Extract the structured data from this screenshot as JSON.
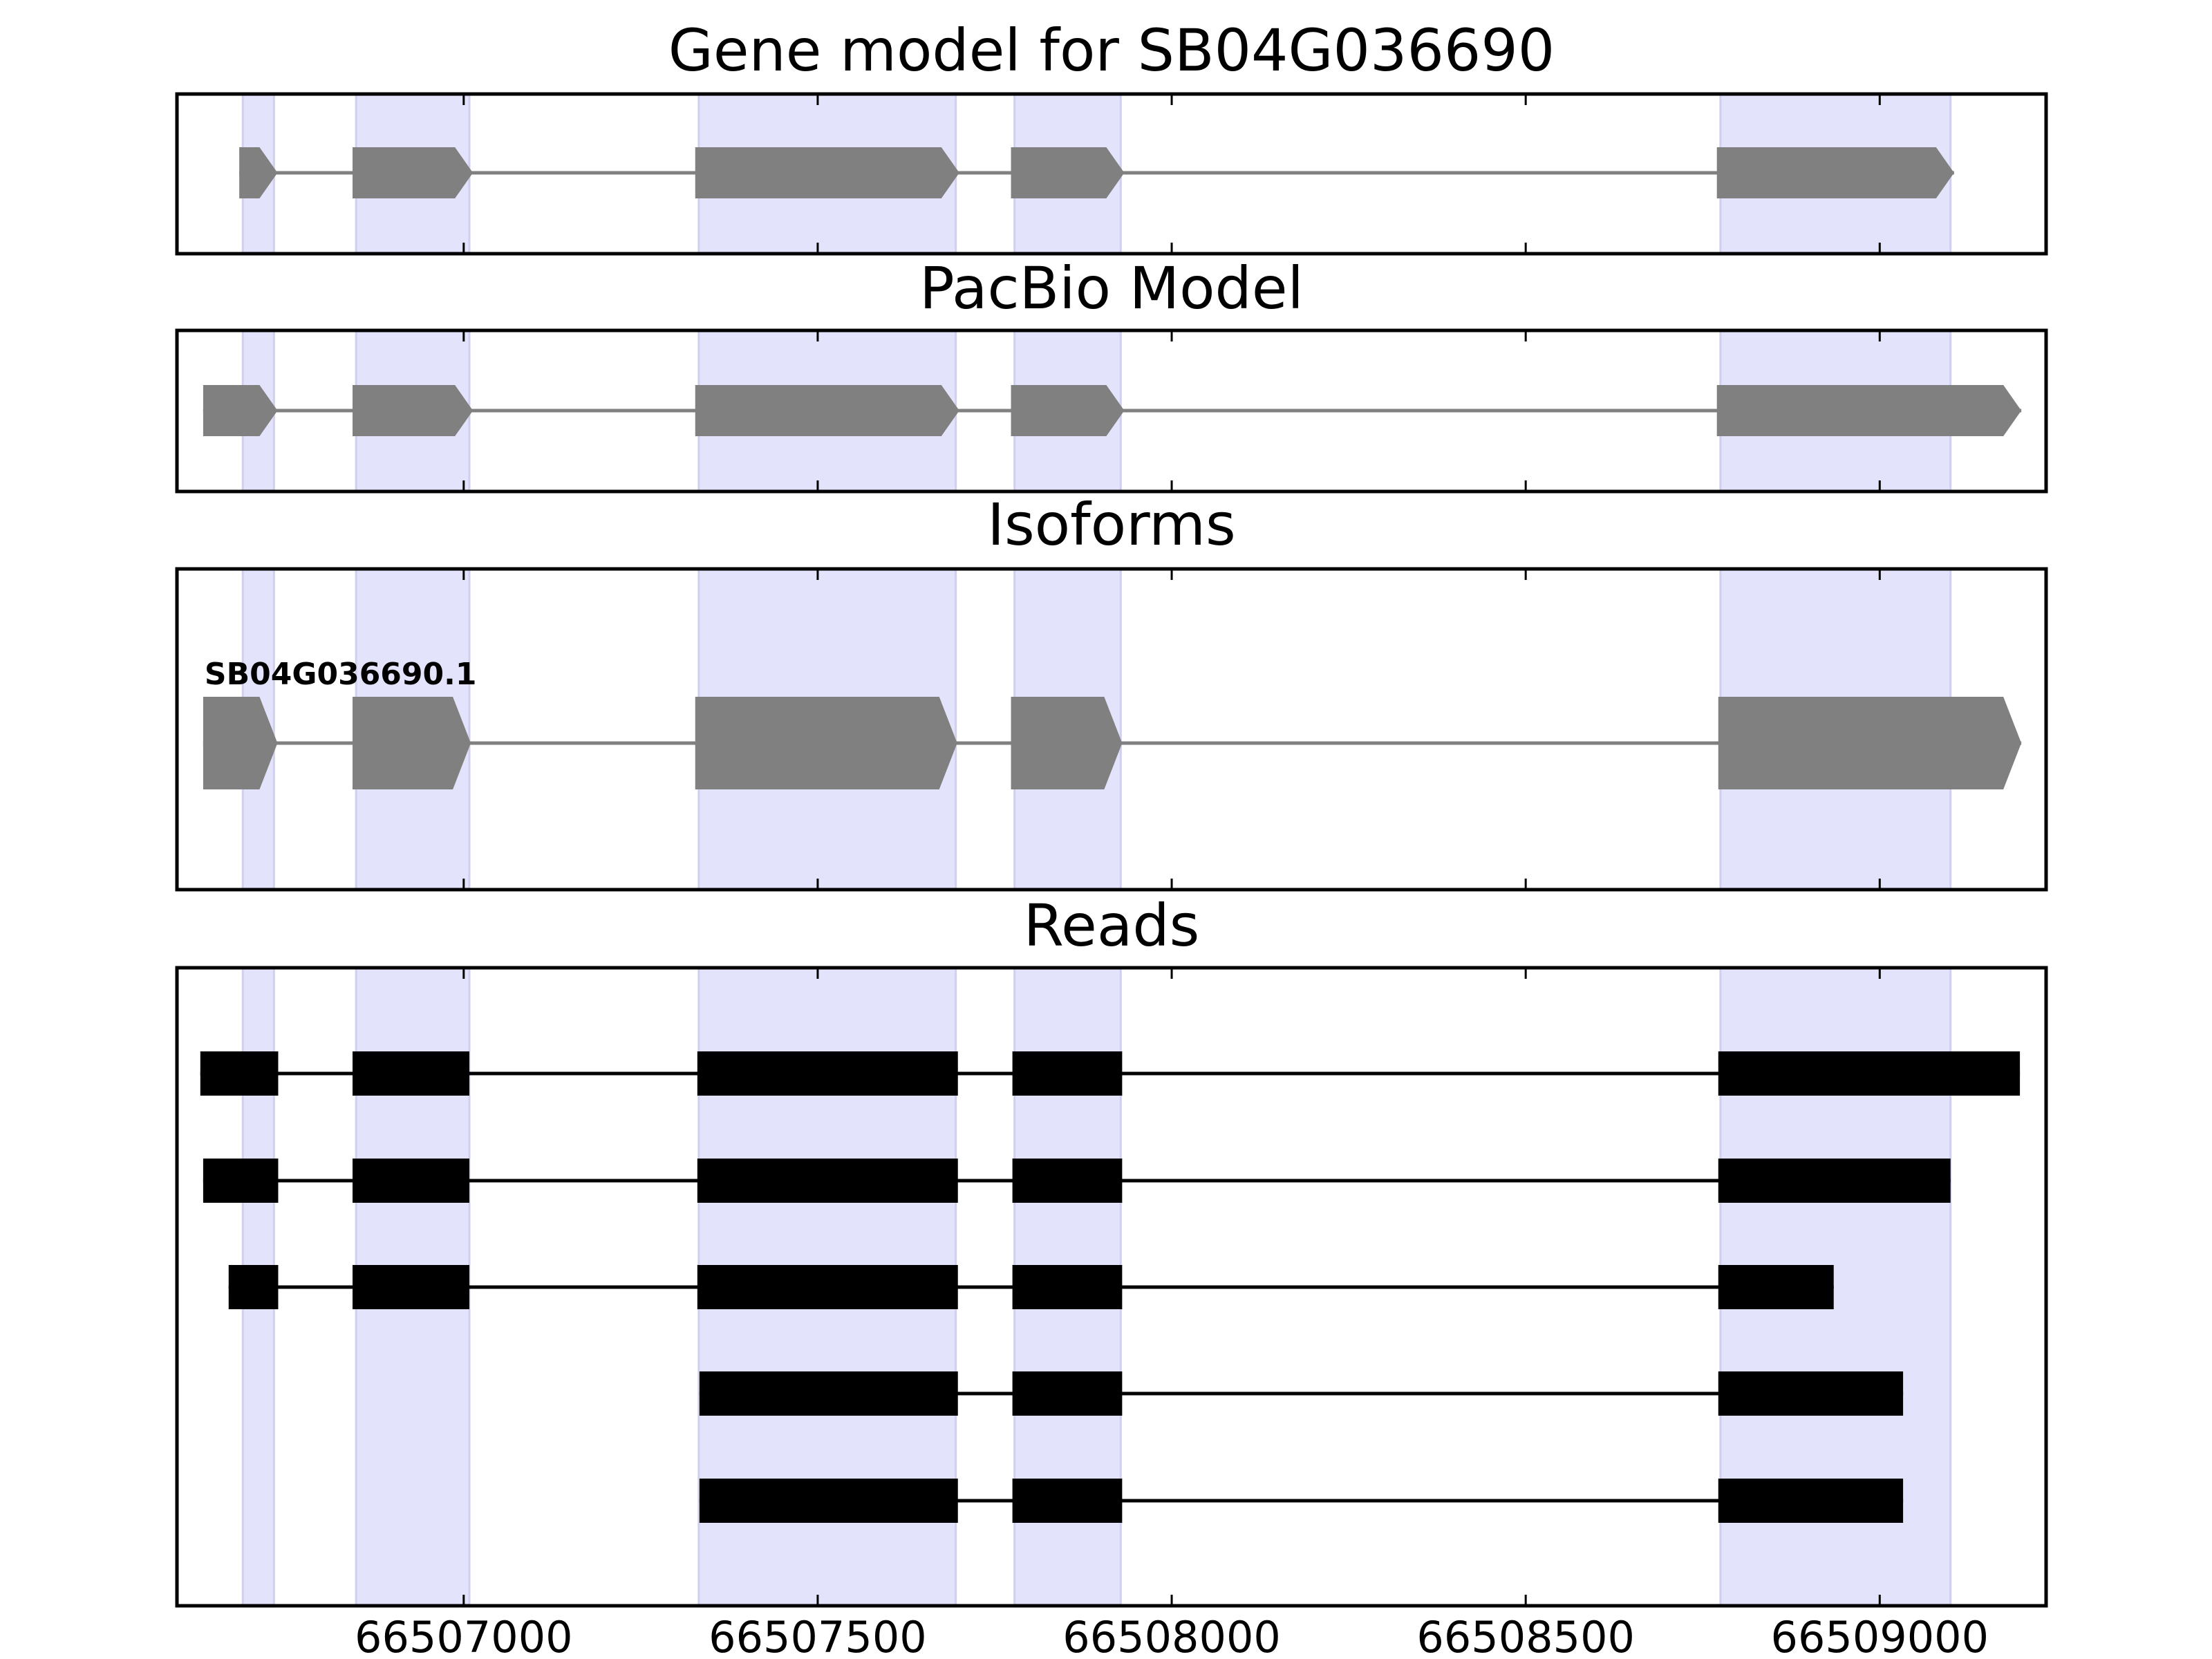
{
  "chart_data": {
    "type": "gene-structure",
    "x_axis": {
      "range": [
        66506595,
        66509235
      ],
      "ticks": [
        66506500,
        66507000,
        66507500,
        66508000,
        66508500,
        66509000,
        66509500
      ],
      "tick_labels": [
        "66507000",
        "66507500",
        "66508000",
        "66508500",
        "66509000"
      ]
    },
    "colors": {
      "highlight": "#e3e3fc",
      "highlight_edge": "#cfcff0",
      "model_fill": "#808080",
      "model_line": "#808080",
      "read_fill": "#000000"
    },
    "highlight_exons": [
      [
        66506688,
        66506732
      ],
      [
        66506848,
        66507008
      ],
      [
        66507332,
        66507695
      ],
      [
        66507778,
        66507928
      ],
      [
        66508775,
        66509100
      ]
    ],
    "panels": [
      {
        "title": "Gene model for SB04G036690",
        "kind": "model",
        "transcripts": [
          {
            "label": "",
            "exons": [
              [
                66506683,
                66506737
              ],
              [
                66506843,
                66507013
              ],
              [
                66507327,
                66507700
              ],
              [
                66507773,
                66507933
              ],
              [
                66508770,
                66509105
              ]
            ]
          }
        ]
      },
      {
        "title": "PacBio Model",
        "kind": "model",
        "transcripts": [
          {
            "label": "",
            "exons": [
              [
                66506632,
                66506737
              ],
              [
                66506843,
                66507013
              ],
              [
                66507327,
                66507700
              ],
              [
                66507773,
                66507933
              ],
              [
                66508770,
                66509200
              ]
            ]
          }
        ]
      },
      {
        "title": "Isoforms",
        "kind": "isoform",
        "transcripts": [
          {
            "label": "SB04G036690.1",
            "exons": [
              [
                66506632,
                66506737
              ],
              [
                66506843,
                66507010
              ],
              [
                66507327,
                66507697
              ],
              [
                66507773,
                66507930
              ],
              [
                66508772,
                66509200
              ]
            ]
          }
        ]
      },
      {
        "title": "Reads",
        "kind": "reads",
        "transcripts": [
          {
            "label": "",
            "exons": [
              [
                66506628,
                66506738
              ],
              [
                66506843,
                66507008
              ],
              [
                66507330,
                66507698
              ],
              [
                66507775,
                66507930
              ],
              [
                66508772,
                66509198
              ]
            ]
          },
          {
            "label": "",
            "exons": [
              [
                66506632,
                66506738
              ],
              [
                66506843,
                66507008
              ],
              [
                66507330,
                66507698
              ],
              [
                66507775,
                66507930
              ],
              [
                66508772,
                66509100
              ]
            ]
          },
          {
            "label": "",
            "exons": [
              [
                66506668,
                66506738
              ],
              [
                66506843,
                66507008
              ],
              [
                66507330,
                66507698
              ],
              [
                66507775,
                66507930
              ],
              [
                66508772,
                66508935
              ]
            ]
          },
          {
            "label": "",
            "exons": [
              [
                66507333,
                66507698
              ],
              [
                66507775,
                66507930
              ],
              [
                66508772,
                66509033
              ]
            ]
          },
          {
            "label": "",
            "exons": [
              [
                66507333,
                66507698
              ],
              [
                66507775,
                66507930
              ],
              [
                66508772,
                66509033
              ]
            ]
          }
        ]
      }
    ]
  }
}
